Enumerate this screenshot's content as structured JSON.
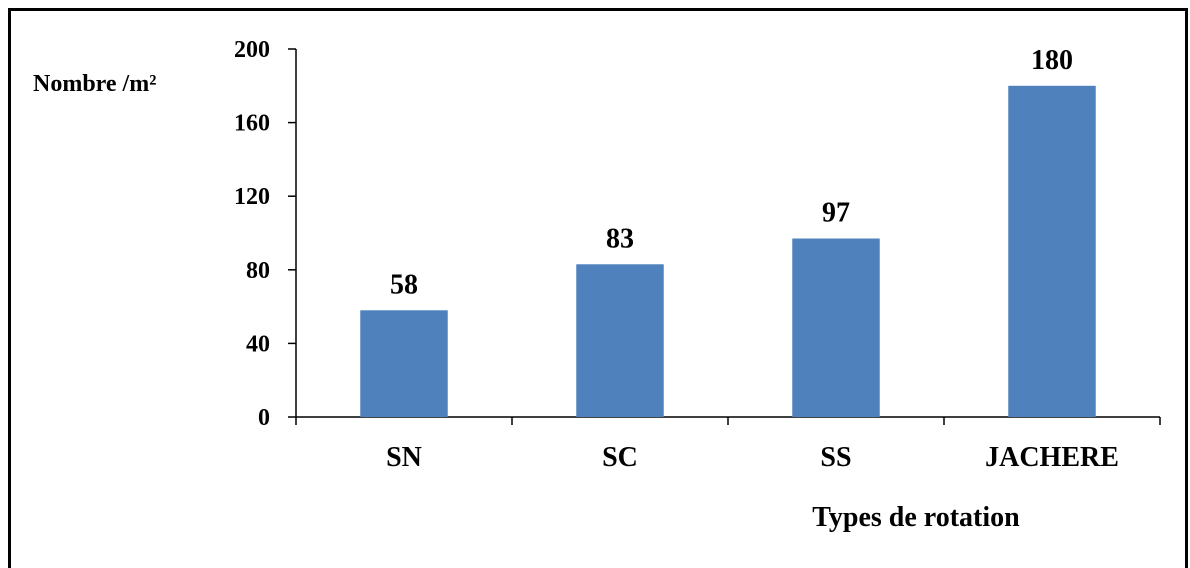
{
  "chart_data": {
    "type": "bar",
    "categories": [
      "SN",
      "SC",
      "SS",
      "JACHERE"
    ],
    "values": [
      58,
      83,
      97,
      180
    ],
    "data_labels": [
      "58",
      "83",
      "97",
      "180"
    ],
    "title": "",
    "xlabel": "Types de rotation",
    "ylabel": "Nombre /m²",
    "ylim": [
      0,
      200
    ],
    "yticks": [
      0,
      40,
      80,
      120,
      160,
      200
    ],
    "ytick_labels": [
      "0",
      "40",
      "80",
      "120",
      "160",
      "200"
    ],
    "grid": false,
    "legend": "none",
    "bar_color": "#4F81BD"
  }
}
